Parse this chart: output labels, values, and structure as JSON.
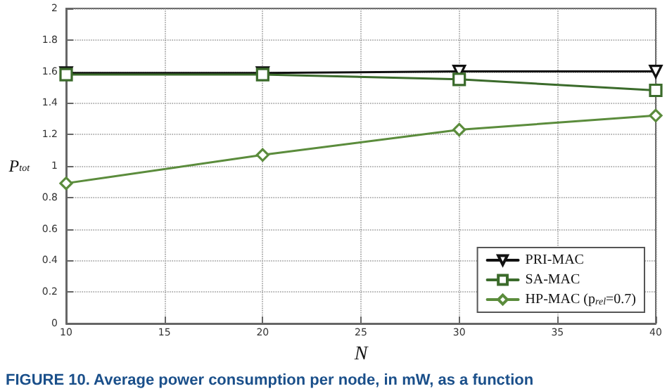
{
  "chart_data": {
    "type": "line",
    "xlabel": "N",
    "ylabel": "P$_{tot}$",
    "x": [
      10,
      20,
      30,
      40
    ],
    "series": [
      {
        "name": "PRI-MAC",
        "color": "#111111",
        "marker": "triangle",
        "values": [
          1.59,
          1.59,
          1.6,
          1.6
        ]
      },
      {
        "name": "SA-MAC",
        "color": "#3b6b2b",
        "marker": "square",
        "values": [
          1.58,
          1.58,
          1.55,
          1.48
        ]
      },
      {
        "name": "HP-MAC (p$_{rel}$=0.7)",
        "color": "#5b8c3c",
        "marker": "diamond",
        "values": [
          0.89,
          1.07,
          1.23,
          1.32
        ]
      }
    ],
    "xlim": [
      10,
      40
    ],
    "xticks": [
      10,
      15,
      20,
      25,
      30,
      35,
      40
    ],
    "ylim": [
      0,
      2
    ],
    "yticks": [
      0,
      0.2,
      0.4,
      0.6,
      0.8,
      1,
      1.2,
      1.4,
      1.6,
      1.8,
      2
    ],
    "grid": true,
    "legend": "bottom right",
    "line_style": "solid",
    "annotations": [
      "FIGURE 10. Average power consumption per node, in mW, as a function"
    ]
  }
}
